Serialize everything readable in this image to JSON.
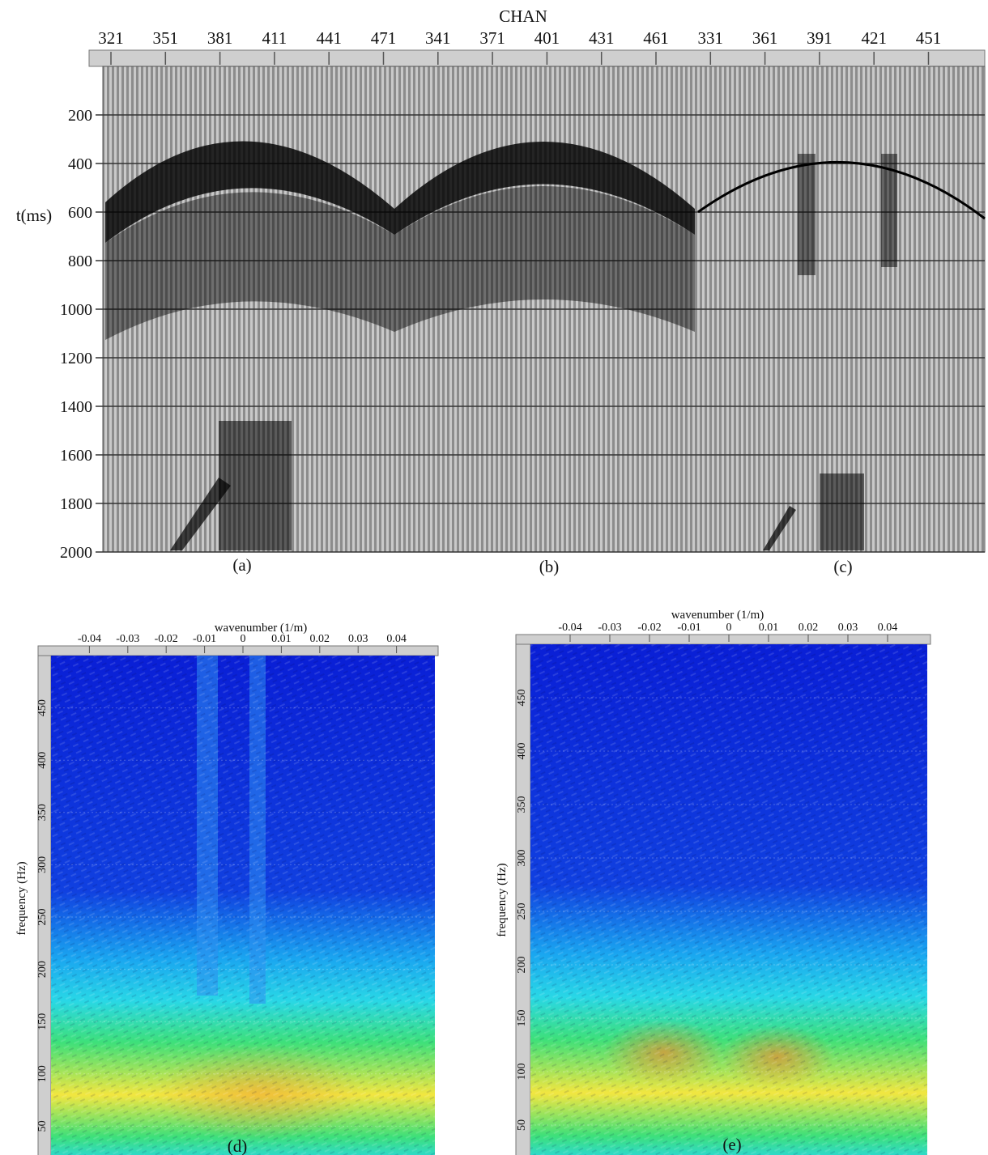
{
  "chart_data": [
    {
      "panel": "seismic-gathers",
      "type": "heatmap",
      "title": "",
      "xlabel": "CHAN",
      "ylabel": "t(ms)",
      "x_ticks": [
        "321",
        "351",
        "381",
        "411",
        "441",
        "471",
        "341",
        "371",
        "401",
        "431",
        "461",
        "331",
        "361",
        "391",
        "421",
        "451"
      ],
      "y_ticks": [
        200,
        400,
        600,
        800,
        1000,
        1200,
        1400,
        1600,
        1800,
        2000
      ],
      "ylim": [
        0,
        2000
      ],
      "y_inverted": true,
      "grid": true,
      "sub_labels": [
        "(a)",
        "(b)",
        "(c)"
      ]
    },
    {
      "panel": "fk-spectrum-d",
      "type": "heatmap",
      "xlabel": "wavenumber (1/m)",
      "ylabel": "frequency (Hz)",
      "x_ticks": [
        "-0.04",
        "-0.03",
        "-0.02",
        "-0.01",
        "0",
        "0.01",
        "0.02",
        "0.03",
        "0.04"
      ],
      "y_ticks": [
        50,
        100,
        150,
        200,
        250,
        300,
        350,
        400,
        450
      ],
      "xlim": [
        -0.05,
        0.05
      ],
      "ylim": [
        0,
        500
      ],
      "sub_label": "(d)"
    },
    {
      "panel": "fk-spectrum-e",
      "type": "heatmap",
      "xlabel": "wavenumber (1/m)",
      "ylabel": "frequency (Hz)",
      "x_ticks": [
        "-0.04",
        "-0.03",
        "-0.02",
        "-0.01",
        "0",
        "0.01",
        "0.02",
        "0.03",
        "0.04"
      ],
      "y_ticks": [
        50,
        100,
        150,
        200,
        250,
        300,
        350,
        400,
        450
      ],
      "xlim": [
        -0.05,
        0.05
      ],
      "ylim": [
        0,
        500
      ],
      "sub_label": "(e)"
    }
  ],
  "colors": {
    "spectrum_low": "#0a1fd6",
    "spectrum_mid": "#1aa6f0",
    "spectrum_cyan": "#29d7e6",
    "spectrum_green": "#3ee07a",
    "spectrum_yellow": "#f2e640",
    "spectrum_peak": "#f08a30"
  }
}
